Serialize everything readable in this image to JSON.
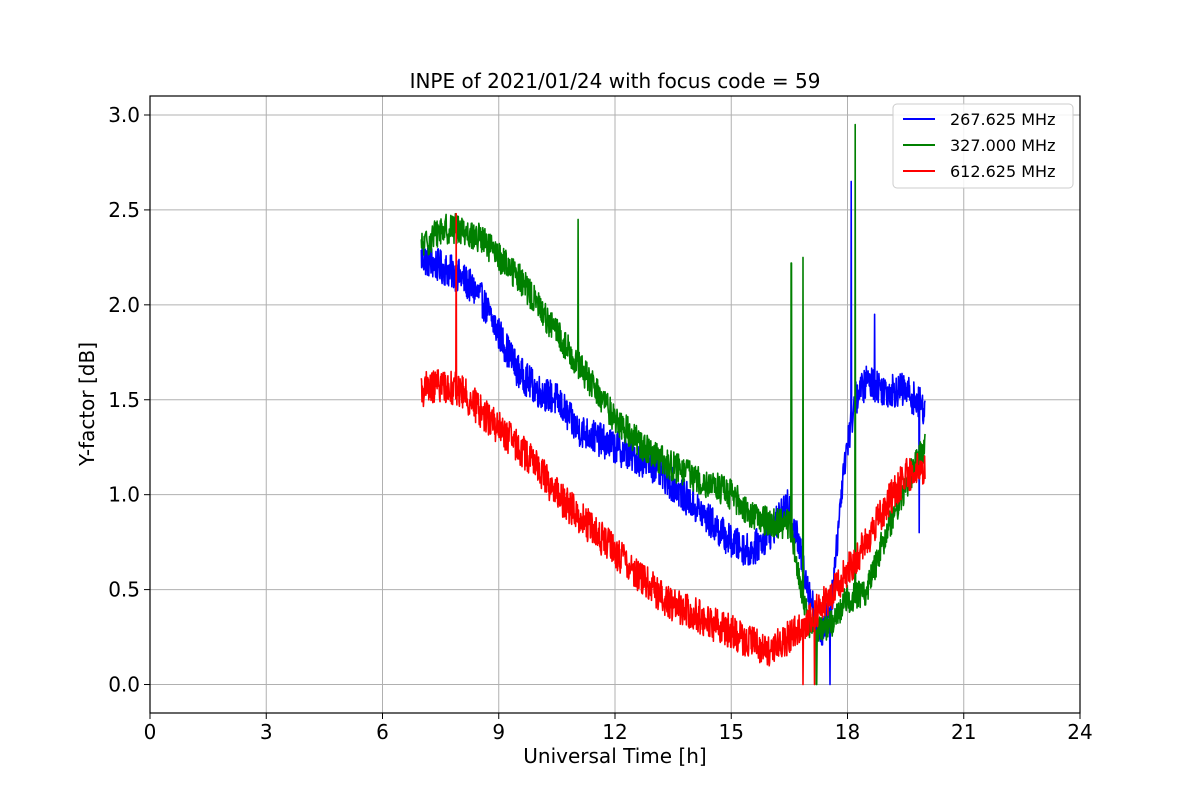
{
  "chart_data": {
    "type": "line",
    "title": "INPE of 2021/01/24 with focus code = 59",
    "xlabel": "Universal Time [h]",
    "ylabel": "Y-factor [dB]",
    "xlim": [
      0,
      24
    ],
    "ylim": [
      -0.15,
      3.1
    ],
    "xticks": [
      0,
      3,
      6,
      9,
      12,
      15,
      18,
      21,
      24
    ],
    "yticks": [
      0.0,
      0.5,
      1.0,
      1.5,
      2.0,
      2.5,
      3.0
    ],
    "xtick_labels": [
      "0",
      "3",
      "6",
      "9",
      "12",
      "15",
      "18",
      "21",
      "24"
    ],
    "ytick_labels": [
      "0.0",
      "0.5",
      "1.0",
      "1.5",
      "2.0",
      "2.5",
      "3.0"
    ],
    "grid": true,
    "legend_position": "top-right",
    "series": [
      {
        "name": "267.625 MHz",
        "color": "#0000ff",
        "noise": 0.09,
        "x": [
          7.0,
          7.5,
          8.0,
          8.5,
          9.0,
          9.5,
          10.0,
          10.5,
          11.0,
          11.5,
          12.0,
          12.5,
          13.0,
          13.5,
          14.0,
          14.5,
          15.0,
          15.5,
          16.0,
          16.5,
          17.0,
          17.3,
          17.6,
          17.9,
          18.2,
          18.5,
          19.0,
          19.5,
          20.0
        ],
        "y": [
          2.25,
          2.2,
          2.15,
          2.05,
          1.85,
          1.65,
          1.55,
          1.5,
          1.35,
          1.3,
          1.25,
          1.2,
          1.15,
          1.05,
          0.95,
          0.85,
          0.75,
          0.7,
          0.8,
          0.95,
          0.5,
          0.25,
          0.45,
          1.15,
          1.5,
          1.6,
          1.55,
          1.55,
          1.45
        ],
        "spikes": [
          [
            17.55,
            0.0
          ],
          [
            18.1,
            2.65
          ],
          [
            18.7,
            1.95
          ],
          [
            19.85,
            0.8
          ]
        ]
      },
      {
        "name": "327.000 MHz",
        "color": "#008000",
        "noise": 0.08,
        "x": [
          7.0,
          7.5,
          8.0,
          8.5,
          9.0,
          9.5,
          10.0,
          10.5,
          11.0,
          11.5,
          12.0,
          12.5,
          13.0,
          13.5,
          14.0,
          14.5,
          15.0,
          15.5,
          16.0,
          16.5,
          17.0,
          17.5,
          18.0,
          18.5,
          19.0,
          19.5,
          20.0
        ],
        "y": [
          2.3,
          2.4,
          2.4,
          2.35,
          2.25,
          2.15,
          2.0,
          1.85,
          1.7,
          1.55,
          1.4,
          1.3,
          1.2,
          1.15,
          1.1,
          1.05,
          1.0,
          0.9,
          0.85,
          0.85,
          0.3,
          0.3,
          0.45,
          0.5,
          0.8,
          1.05,
          1.25
        ],
        "spikes": [
          [
            11.05,
            2.45
          ],
          [
            16.55,
            2.22
          ],
          [
            16.85,
            2.25
          ],
          [
            17.2,
            0.0
          ],
          [
            18.2,
            2.95
          ]
        ]
      },
      {
        "name": "612.625 MHz",
        "color": "#ff0000",
        "noise": 0.09,
        "x": [
          7.0,
          7.5,
          8.0,
          8.5,
          9.0,
          9.5,
          10.0,
          10.5,
          11.0,
          11.5,
          12.0,
          12.5,
          13.0,
          13.5,
          14.0,
          14.5,
          15.0,
          15.5,
          16.0,
          16.5,
          17.0,
          17.5,
          18.0,
          18.5,
          19.0,
          19.5,
          20.0
        ],
        "y": [
          1.55,
          1.58,
          1.55,
          1.45,
          1.35,
          1.25,
          1.15,
          1.0,
          0.9,
          0.8,
          0.7,
          0.6,
          0.5,
          0.42,
          0.38,
          0.32,
          0.28,
          0.22,
          0.18,
          0.25,
          0.35,
          0.45,
          0.6,
          0.75,
          0.95,
          1.1,
          1.15
        ],
        "spikes": [
          [
            7.9,
            2.48
          ],
          [
            16.85,
            0.0
          ],
          [
            17.15,
            0.0
          ]
        ]
      }
    ]
  }
}
